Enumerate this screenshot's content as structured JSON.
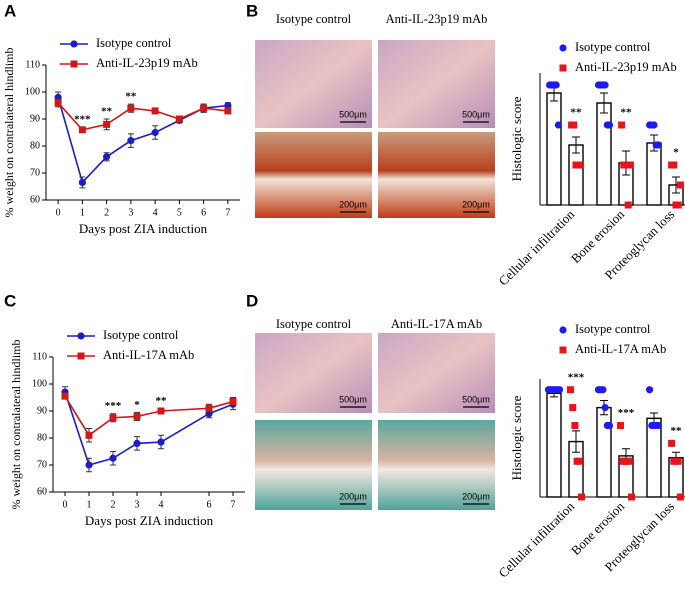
{
  "figure": {
    "panel_labels": [
      "A",
      "B",
      "C",
      "D"
    ],
    "images": [
      {
        "headers": [
          "Isotype control",
          "Anti-IL-23p19 mAb"
        ],
        "scale_bars": [
          "500μm",
          "500μm",
          "200μm",
          "200μm"
        ]
      },
      {
        "headers": [
          "Isotype control",
          "Anti-IL-17A mAb"
        ],
        "scale_bars": [
          "500μm",
          "500μm",
          "200μm",
          "200μm"
        ]
      }
    ]
  },
  "chart_data": [
    {
      "type": "line",
      "xlabel": "Days post ZIA induction",
      "ylabel": "% weight on contralateral hindlimb",
      "x": [
        0,
        1,
        2,
        3,
        4,
        5,
        6,
        7
      ],
      "xlim": [
        -0.5,
        7.5
      ],
      "xticks": [
        0,
        1,
        2,
        3,
        4,
        5,
        6,
        7
      ],
      "ylim": [
        60,
        110
      ],
      "yticks": [
        60,
        70,
        80,
        90,
        100,
        110
      ],
      "series": [
        {
          "name": "Isotype control",
          "color": "#1c1cc8",
          "marker": "circle",
          "values": [
            98,
            66.5,
            76,
            82,
            85,
            89.5,
            94,
            95
          ],
          "errors": [
            2,
            2,
            1.5,
            2.5,
            2.5,
            1,
            1.5,
            1
          ]
        },
        {
          "name": "Anti-IL-23p19 mAb",
          "color": "#d01818",
          "marker": "square",
          "values": [
            96,
            86,
            88,
            94,
            93,
            90,
            94,
            93
          ],
          "errors": [
            1.5,
            1,
            2,
            1.5,
            1,
            1,
            1.5,
            1
          ]
        }
      ],
      "annotations": [
        {
          "x": 1,
          "text": "***"
        },
        {
          "x": 2,
          "text": "**"
        },
        {
          "x": 3,
          "text": "**"
        }
      ]
    },
    {
      "type": "bar",
      "ylabel": "Histologic score",
      "categories": [
        "Cellular infiltration",
        "Bone erosion",
        "Proteoglycan loss"
      ],
      "ylim": [
        0,
        3.3
      ],
      "series": [
        {
          "name": "Isotype control",
          "color": "#1c1cf0",
          "marker": "circle",
          "values": [
            2.8,
            2.55,
            1.55
          ],
          "errors": [
            0.2,
            0.25,
            0.2
          ],
          "points": [
            [
              3,
              3,
              3,
              3,
              2
            ],
            [
              3,
              3,
              3,
              3,
              2,
              2
            ],
            [
              2,
              2,
              2,
              1.5,
              1.5
            ]
          ]
        },
        {
          "name": "Anti-IL-23p19 mAb",
          "color": "#e8141b",
          "marker": "square",
          "values": [
            1.5,
            1.05,
            0.5
          ],
          "errors": [
            0.2,
            0.3,
            0.2
          ],
          "points": [
            [
              2,
              2,
              1,
              1,
              1
            ],
            [
              2,
              1,
              1,
              0,
              1
            ],
            [
              1,
              1,
              0,
              0,
              0.5
            ]
          ]
        }
      ],
      "annotations": [
        "**",
        "**",
        "*"
      ]
    },
    {
      "type": "line",
      "xlabel": "Days post ZIA induction",
      "ylabel": "% weight on contralateral hindlimb",
      "x": [
        0,
        1,
        2,
        3,
        4,
        6,
        7
      ],
      "xlim": [
        -0.5,
        7.5
      ],
      "xticks": [
        0,
        1,
        2,
        3,
        4,
        6,
        7
      ],
      "ylim": [
        60,
        110
      ],
      "yticks": [
        60,
        70,
        80,
        90,
        100,
        110
      ],
      "series": [
        {
          "name": "Isotype control",
          "color": "#1c1cc8",
          "marker": "circle",
          "values": [
            97,
            70,
            72.5,
            78,
            78.5,
            89,
            92.5
          ],
          "errors": [
            2,
            2.5,
            2.5,
            2.5,
            2.5,
            1.5,
            2
          ]
        },
        {
          "name": "Anti-IL-17A mAb",
          "color": "#d01818",
          "marker": "square",
          "values": [
            95.5,
            81,
            87.5,
            88,
            90,
            91,
            93.5
          ],
          "errors": [
            1,
            2.5,
            1.5,
            1.5,
            1,
            1.5,
            1.5
          ]
        }
      ],
      "annotations": [
        {
          "x": 2,
          "text": "***"
        },
        {
          "x": 3,
          "text": "*"
        },
        {
          "x": 4,
          "text": "**"
        }
      ]
    },
    {
      "type": "bar",
      "ylabel": "Histologic score",
      "categories": [
        "Cellular infiltration",
        "Bone erosion",
        "Proteoglycan loss"
      ],
      "ylim": [
        0,
        3.3
      ],
      "series": [
        {
          "name": "Isotype control",
          "color": "#1c1cf0",
          "marker": "circle",
          "values": [
            2.9,
            2.5,
            2.2
          ],
          "errors": [
            0.1,
            0.2,
            0.15
          ],
          "points": [
            [
              3,
              3,
              3,
              3,
              3,
              3
            ],
            [
              3,
              3,
              3,
              2.5,
              2,
              2
            ],
            [
              3,
              2,
              2,
              2,
              2
            ]
          ]
        },
        {
          "name": "Anti-IL-17A mAb",
          "color": "#e8141b",
          "marker": "square",
          "values": [
            1.55,
            1.15,
            1.1
          ],
          "errors": [
            0.3,
            0.2,
            0.15
          ],
          "points": [
            [
              3,
              2.5,
              2,
              1,
              1,
              0
            ],
            [
              2,
              1,
              1,
              1,
              1,
              0
            ],
            [
              1.5,
              1,
              1,
              1,
              0
            ]
          ]
        }
      ],
      "annotations": [
        "***",
        "***",
        "**"
      ]
    }
  ]
}
